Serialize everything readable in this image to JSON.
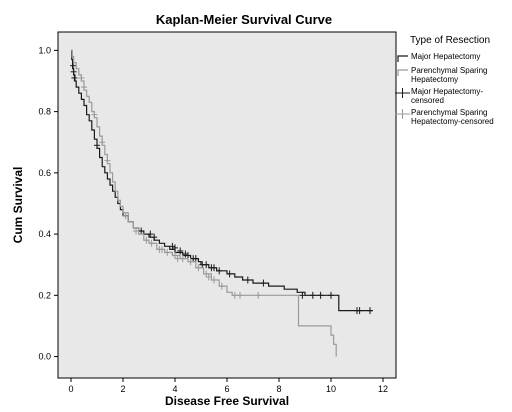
{
  "chart_data": {
    "type": "line",
    "title": "Kaplan-Meier Survival Curve",
    "xlabel": "Disease Free Survival",
    "ylabel": "Cum Survival",
    "xlim": [
      -0.5,
      12.5
    ],
    "ylim": [
      -0.07,
      1.06
    ],
    "xticks": [
      0,
      2,
      4,
      6,
      8,
      10,
      12
    ],
    "yticks": [
      0.0,
      0.2,
      0.4,
      0.6,
      0.8,
      1.0
    ],
    "xtick_labels": [
      "0",
      "2",
      "4",
      "6",
      "8",
      "10",
      "12"
    ],
    "ytick_labels": [
      "0.0",
      "0.2",
      "0.4",
      "0.6",
      "0.8",
      "1.0"
    ],
    "grid": false,
    "background_color": "#e8e8e8",
    "legend": {
      "title": "Type of Resection",
      "placement": "right",
      "entries": [
        {
          "label_lines": [
            "Major Hepatectomy"
          ],
          "symbol": "line",
          "color": "#1a1a1a"
        },
        {
          "label_lines": [
            "Parenchymal Sparing",
            "Hepatectomy"
          ],
          "symbol": "line",
          "color": "#9a9a9a"
        },
        {
          "label_lines": [
            "Major Hepatectomy-",
            "censored"
          ],
          "symbol": "plus",
          "color": "#1a1a1a"
        },
        {
          "label_lines": [
            "Parenchymal Sparing",
            "Hepatectomy-censored"
          ],
          "symbol": "plus",
          "color": "#9a9a9a"
        }
      ]
    },
    "series": [
      {
        "name": "Major Hepatectomy",
        "color": "#1a1a1a",
        "step_points": [
          [
            0,
            1.0
          ],
          [
            0.03,
            0.97
          ],
          [
            0.06,
            0.94
          ],
          [
            0.1,
            0.92
          ],
          [
            0.15,
            0.9
          ],
          [
            0.2,
            0.88
          ],
          [
            0.3,
            0.86
          ],
          [
            0.4,
            0.84
          ],
          [
            0.5,
            0.82
          ],
          [
            0.6,
            0.79
          ],
          [
            0.7,
            0.77
          ],
          [
            0.8,
            0.74
          ],
          [
            0.9,
            0.71
          ],
          [
            1.0,
            0.68
          ],
          [
            1.1,
            0.65
          ],
          [
            1.2,
            0.62
          ],
          [
            1.3,
            0.6
          ],
          [
            1.4,
            0.58
          ],
          [
            1.5,
            0.56
          ],
          [
            1.6,
            0.54
          ],
          [
            1.7,
            0.52
          ],
          [
            1.8,
            0.5
          ],
          [
            1.9,
            0.48
          ],
          [
            2.0,
            0.46
          ],
          [
            2.2,
            0.44
          ],
          [
            2.4,
            0.42
          ],
          [
            2.6,
            0.41
          ],
          [
            2.8,
            0.4
          ],
          [
            3.0,
            0.39
          ],
          [
            3.2,
            0.38
          ],
          [
            3.4,
            0.37
          ],
          [
            3.6,
            0.36
          ],
          [
            3.8,
            0.35
          ],
          [
            4.0,
            0.34
          ],
          [
            4.3,
            0.33
          ],
          [
            4.6,
            0.32
          ],
          [
            4.9,
            0.31
          ],
          [
            5.0,
            0.3
          ],
          [
            5.3,
            0.29
          ],
          [
            5.6,
            0.28
          ],
          [
            6.0,
            0.27
          ],
          [
            6.3,
            0.26
          ],
          [
            6.6,
            0.25
          ],
          [
            7.0,
            0.24
          ],
          [
            7.6,
            0.23
          ],
          [
            8.2,
            0.22
          ],
          [
            8.7,
            0.21
          ],
          [
            9.0,
            0.2
          ],
          [
            10.2,
            0.2
          ],
          [
            10.3,
            0.15
          ],
          [
            11.6,
            0.15
          ]
        ],
        "censored": [
          [
            0.08,
            0.95
          ],
          [
            0.1,
            0.93
          ],
          [
            0.13,
            0.91
          ],
          [
            1.0,
            0.69
          ],
          [
            2.7,
            0.41
          ],
          [
            3.05,
            0.4
          ],
          [
            3.2,
            0.39
          ],
          [
            3.9,
            0.36
          ],
          [
            4.0,
            0.355
          ],
          [
            4.2,
            0.345
          ],
          [
            4.4,
            0.335
          ],
          [
            4.5,
            0.33
          ],
          [
            4.7,
            0.32
          ],
          [
            4.8,
            0.32
          ],
          [
            5.05,
            0.3
          ],
          [
            5.2,
            0.3
          ],
          [
            5.4,
            0.29
          ],
          [
            5.5,
            0.29
          ],
          [
            5.7,
            0.28
          ],
          [
            6.1,
            0.27
          ],
          [
            6.8,
            0.25
          ],
          [
            7.4,
            0.24
          ],
          [
            8.9,
            0.2
          ],
          [
            9.3,
            0.2
          ],
          [
            9.6,
            0.2
          ],
          [
            10.0,
            0.2
          ],
          [
            11.0,
            0.15
          ],
          [
            11.1,
            0.15
          ],
          [
            11.5,
            0.15
          ]
        ]
      },
      {
        "name": "Parenchymal Sparing Hepatectomy",
        "color": "#9a9a9a",
        "step_points": [
          [
            0,
            1.0
          ],
          [
            0.05,
            0.98
          ],
          [
            0.1,
            0.96
          ],
          [
            0.2,
            0.94
          ],
          [
            0.3,
            0.92
          ],
          [
            0.4,
            0.9
          ],
          [
            0.5,
            0.87
          ],
          [
            0.6,
            0.85
          ],
          [
            0.7,
            0.83
          ],
          [
            0.8,
            0.8
          ],
          [
            0.9,
            0.78
          ],
          [
            1.0,
            0.75
          ],
          [
            1.1,
            0.72
          ],
          [
            1.2,
            0.69
          ],
          [
            1.3,
            0.66
          ],
          [
            1.4,
            0.63
          ],
          [
            1.5,
            0.6
          ],
          [
            1.6,
            0.57
          ],
          [
            1.7,
            0.54
          ],
          [
            1.8,
            0.51
          ],
          [
            1.9,
            0.49
          ],
          [
            2.0,
            0.47
          ],
          [
            2.2,
            0.44
          ],
          [
            2.4,
            0.42
          ],
          [
            2.6,
            0.4
          ],
          [
            2.8,
            0.38
          ],
          [
            3.0,
            0.37
          ],
          [
            3.3,
            0.35
          ],
          [
            3.6,
            0.34
          ],
          [
            3.9,
            0.33
          ],
          [
            4.2,
            0.32
          ],
          [
            4.5,
            0.31
          ],
          [
            4.8,
            0.29
          ],
          [
            5.1,
            0.27
          ],
          [
            5.4,
            0.25
          ],
          [
            5.7,
            0.23
          ],
          [
            6.0,
            0.21
          ],
          [
            6.2,
            0.2
          ],
          [
            8.7,
            0.2
          ],
          [
            8.75,
            0.1
          ],
          [
            9.9,
            0.1
          ],
          [
            10.0,
            0.07
          ],
          [
            10.1,
            0.04
          ],
          [
            10.2,
            0.0
          ]
        ],
        "censored": [
          [
            0.4,
            0.91
          ],
          [
            0.5,
            0.88
          ],
          [
            0.9,
            0.79
          ],
          [
            1.2,
            0.7
          ],
          [
            1.4,
            0.64
          ],
          [
            2.1,
            0.46
          ],
          [
            2.5,
            0.41
          ],
          [
            2.9,
            0.38
          ],
          [
            3.1,
            0.37
          ],
          [
            3.4,
            0.35
          ],
          [
            3.5,
            0.35
          ],
          [
            3.7,
            0.34
          ],
          [
            4.0,
            0.33
          ],
          [
            4.1,
            0.32
          ],
          [
            4.3,
            0.32
          ],
          [
            4.6,
            0.31
          ],
          [
            4.9,
            0.29
          ],
          [
            5.2,
            0.27
          ],
          [
            5.3,
            0.26
          ],
          [
            5.5,
            0.25
          ],
          [
            5.8,
            0.23
          ],
          [
            6.3,
            0.2
          ],
          [
            6.5,
            0.2
          ],
          [
            7.2,
            0.2
          ]
        ]
      }
    ]
  }
}
